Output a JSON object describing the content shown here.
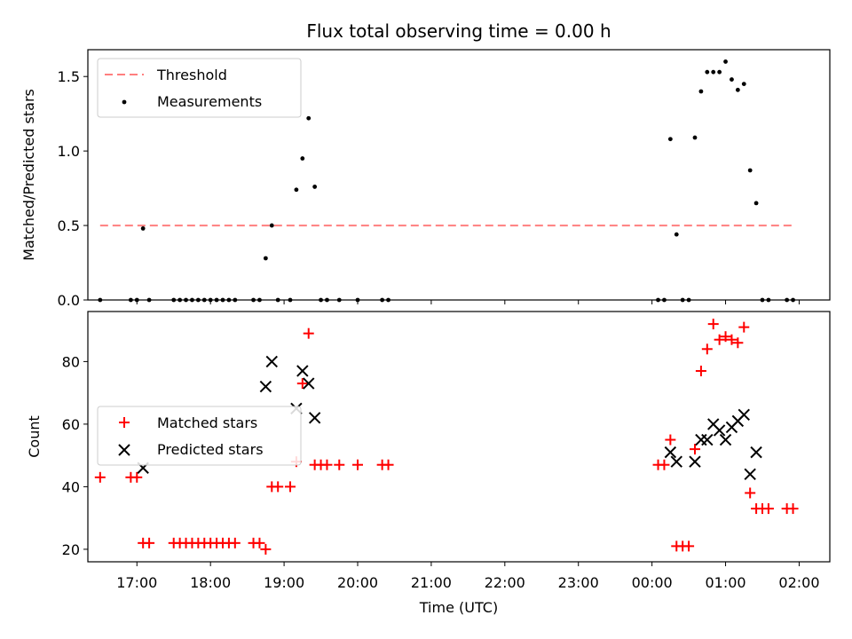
{
  "chart_data": [
    {
      "type": "scatter",
      "title": "Flux total observing time = 0.00 h",
      "xlabel": "",
      "ylabel": "Matched/Predicted stars",
      "xlim": [
        "16:20",
        "02:25"
      ],
      "ylim": [
        0,
        1.68
      ],
      "yticks": [
        0.0,
        0.5,
        1.0,
        1.5
      ],
      "yticklabels": [
        "0.0",
        "0.5",
        "1.0",
        "1.5"
      ],
      "grid": false,
      "legend": "top-left",
      "threshold": {
        "name": "Threshold",
        "value": 0.5,
        "x_start": "16:30",
        "x_end": "01:55",
        "color": "#ff7f7f"
      },
      "series": [
        {
          "name": "Measurements",
          "color": "#000000",
          "marker": "dot",
          "points": [
            [
              "16:30",
              0
            ],
            [
              "16:55",
              0
            ],
            [
              "17:00",
              0
            ],
            [
              "17:05",
              0.48
            ],
            [
              "17:10",
              0
            ],
            [
              "17:30",
              0
            ],
            [
              "17:35",
              0
            ],
            [
              "17:40",
              0
            ],
            [
              "17:45",
              0
            ],
            [
              "17:50",
              0
            ],
            [
              "17:55",
              0
            ],
            [
              "18:00",
              0
            ],
            [
              "18:05",
              0
            ],
            [
              "18:10",
              0
            ],
            [
              "18:15",
              0
            ],
            [
              "18:20",
              0
            ],
            [
              "18:35",
              0
            ],
            [
              "18:40",
              0
            ],
            [
              "18:45",
              0.28
            ],
            [
              "18:50",
              0.5
            ],
            [
              "18:55",
              0
            ],
            [
              "19:05",
              0
            ],
            [
              "19:10",
              0.74
            ],
            [
              "19:15",
              0.95
            ],
            [
              "19:20",
              1.22
            ],
            [
              "19:25",
              0.76
            ],
            [
              "19:30",
              0
            ],
            [
              "19:35",
              0
            ],
            [
              "19:45",
              0
            ],
            [
              "20:00",
              0
            ],
            [
              "20:20",
              0
            ],
            [
              "20:25",
              0
            ],
            [
              "00:05",
              0
            ],
            [
              "00:10",
              0
            ],
            [
              "00:15",
              1.08
            ],
            [
              "00:20",
              0.44
            ],
            [
              "00:25",
              0
            ],
            [
              "00:30",
              0
            ],
            [
              "00:35",
              1.09
            ],
            [
              "00:40",
              1.4
            ],
            [
              "00:45",
              1.53
            ],
            [
              "00:50",
              1.53
            ],
            [
              "00:55",
              1.53
            ],
            [
              "01:00",
              1.6
            ],
            [
              "01:05",
              1.48
            ],
            [
              "01:10",
              1.41
            ],
            [
              "01:15",
              1.45
            ],
            [
              "01:20",
              0.87
            ],
            [
              "01:25",
              0.65
            ],
            [
              "01:30",
              0
            ],
            [
              "01:35",
              0
            ],
            [
              "01:50",
              0
            ],
            [
              "01:55",
              0
            ]
          ]
        }
      ]
    },
    {
      "type": "scatter",
      "title": "",
      "xlabel": "Time (UTC)",
      "ylabel": "Count",
      "xlim": [
        "16:20",
        "02:25"
      ],
      "ylim": [
        16,
        96
      ],
      "yticks": [
        20,
        40,
        60,
        80
      ],
      "yticklabels": [
        "20",
        "40",
        "60",
        "80"
      ],
      "xticks": [
        "17:00",
        "18:00",
        "19:00",
        "20:00",
        "21:00",
        "22:00",
        "23:00",
        "00:00",
        "01:00",
        "02:00"
      ],
      "grid": false,
      "legend": "center-left",
      "series": [
        {
          "name": "Matched stars",
          "color": "#ff0000",
          "marker": "plus",
          "points": [
            [
              "16:30",
              43
            ],
            [
              "16:55",
              43
            ],
            [
              "17:00",
              43
            ],
            [
              "17:05",
              22
            ],
            [
              "17:10",
              22
            ],
            [
              "17:30",
              22
            ],
            [
              "17:35",
              22
            ],
            [
              "17:40",
              22
            ],
            [
              "17:45",
              22
            ],
            [
              "17:50",
              22
            ],
            [
              "17:55",
              22
            ],
            [
              "18:00",
              22
            ],
            [
              "18:05",
              22
            ],
            [
              "18:10",
              22
            ],
            [
              "18:15",
              22
            ],
            [
              "18:20",
              22
            ],
            [
              "18:35",
              22
            ],
            [
              "18:40",
              22
            ],
            [
              "18:45",
              20
            ],
            [
              "18:50",
              40
            ],
            [
              "18:55",
              40
            ],
            [
              "19:05",
              40
            ],
            [
              "19:10",
              48
            ],
            [
              "19:15",
              73
            ],
            [
              "19:20",
              89
            ],
            [
              "19:25",
              47
            ],
            [
              "19:30",
              47
            ],
            [
              "19:35",
              47
            ],
            [
              "19:45",
              47
            ],
            [
              "20:00",
              47
            ],
            [
              "20:20",
              47
            ],
            [
              "20:25",
              47
            ],
            [
              "00:05",
              47
            ],
            [
              "00:10",
              47
            ],
            [
              "00:15",
              55
            ],
            [
              "00:20",
              21
            ],
            [
              "00:25",
              21
            ],
            [
              "00:30",
              21
            ],
            [
              "00:35",
              52
            ],
            [
              "00:40",
              77
            ],
            [
              "00:45",
              84
            ],
            [
              "00:50",
              92
            ],
            [
              "00:55",
              87
            ],
            [
              "01:00",
              88
            ],
            [
              "01:05",
              87
            ],
            [
              "01:10",
              86
            ],
            [
              "01:15",
              91
            ],
            [
              "01:20",
              38
            ],
            [
              "01:25",
              33
            ],
            [
              "01:30",
              33
            ],
            [
              "01:35",
              33
            ],
            [
              "01:50",
              33
            ],
            [
              "01:55",
              33
            ]
          ]
        },
        {
          "name": "Predicted stars",
          "color": "#000000",
          "marker": "x",
          "points": [
            [
              "17:05",
              46
            ],
            [
              "18:45",
              72
            ],
            [
              "18:50",
              80
            ],
            [
              "19:10",
              65
            ],
            [
              "19:15",
              77
            ],
            [
              "19:20",
              73
            ],
            [
              "19:25",
              62
            ],
            [
              "00:15",
              51
            ],
            [
              "00:20",
              48
            ],
            [
              "00:35",
              48
            ],
            [
              "00:40",
              55
            ],
            [
              "00:45",
              55
            ],
            [
              "00:50",
              60
            ],
            [
              "00:55",
              58
            ],
            [
              "01:00",
              55
            ],
            [
              "01:05",
              59
            ],
            [
              "01:10",
              61
            ],
            [
              "01:15",
              63
            ],
            [
              "01:20",
              44
            ],
            [
              "01:25",
              51
            ]
          ]
        }
      ]
    }
  ]
}
